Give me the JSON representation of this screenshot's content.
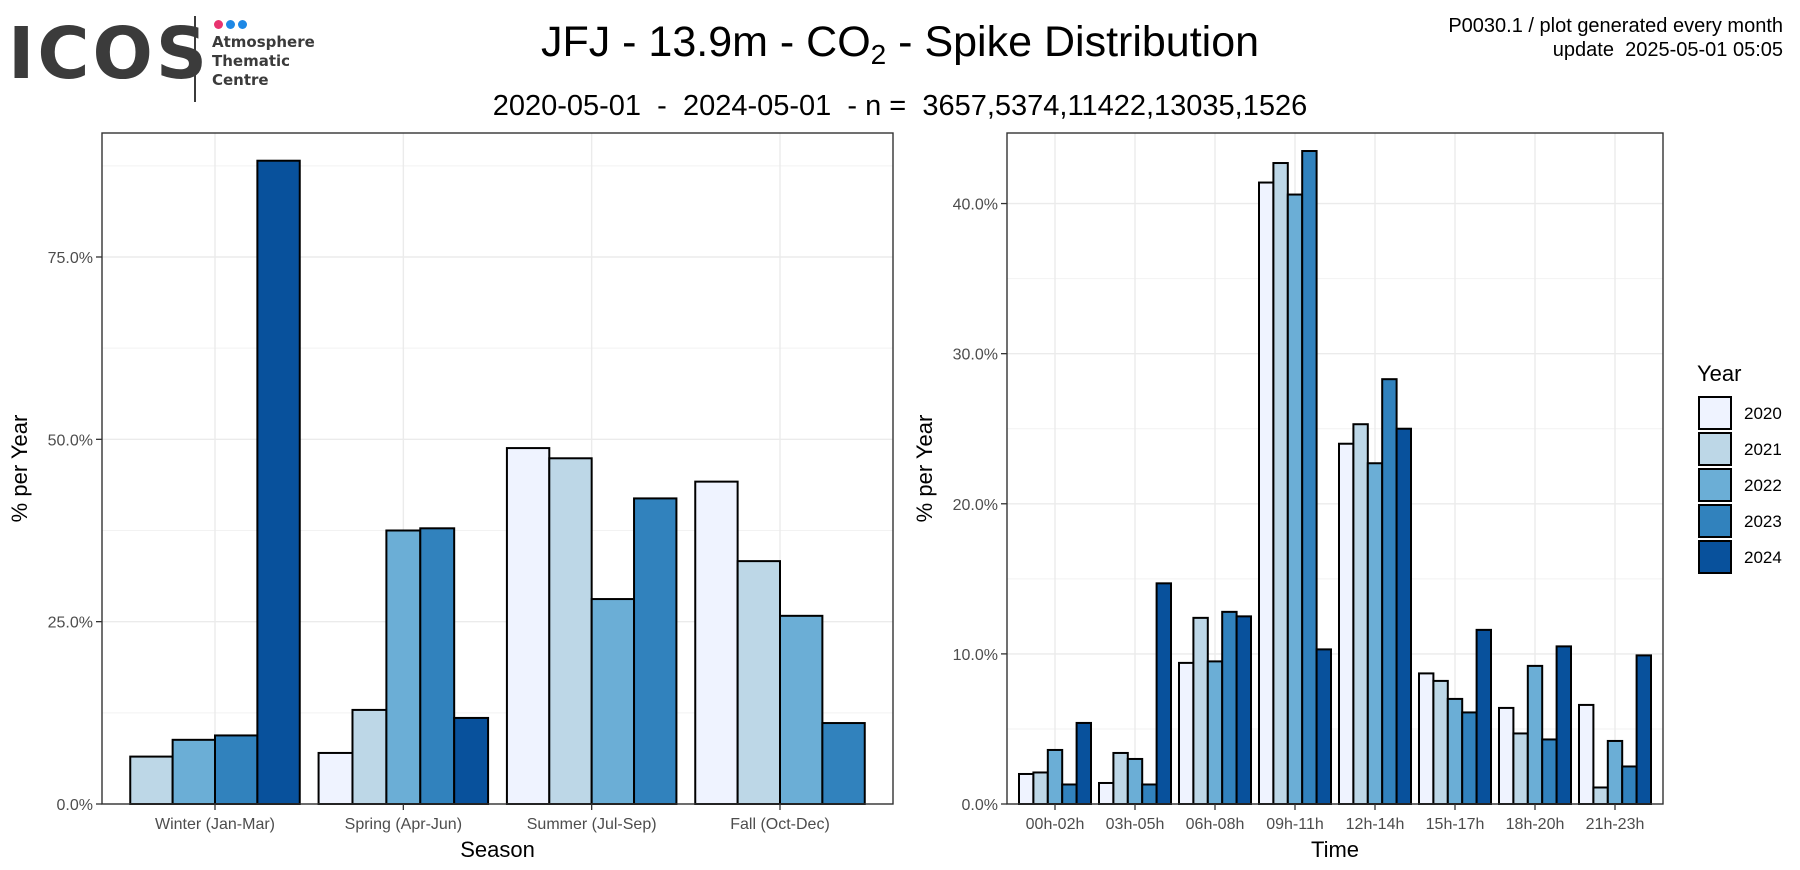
{
  "header": {
    "title_main": "JFJ - 13.9m - CO",
    "title_sub": "2",
    "title_end": " - Spike Distribution",
    "subtitle": "2020-05-01  -  2024-05-01  - n =  3657,5374,11422,13035,1526",
    "meta_line1": "P0030.1 / plot generated every month",
    "meta_line2": "update  2025-05-01 05:05"
  },
  "logo": {
    "word": "ICOS",
    "lines": [
      "Atmosphere",
      "Thematic",
      "Centre"
    ],
    "dot_colors": [
      "#e8336f",
      "#1e88e5",
      "#1e88e5"
    ]
  },
  "legend": {
    "title": "Year",
    "years": [
      "2020",
      "2021",
      "2022",
      "2023",
      "2024"
    ],
    "colors": [
      "#eff3ff",
      "#bdd7e7",
      "#6baed6",
      "#3182bd",
      "#08519c"
    ]
  },
  "chart_data": [
    {
      "type": "bar",
      "xlabel": "Season",
      "ylabel": "% per Year",
      "ylim": [
        0,
        92
      ],
      "yticks": [
        0,
        25,
        50,
        75
      ],
      "ytick_labels": [
        "0.0%",
        "25.0%",
        "50.0%",
        "75.0%"
      ],
      "categories": [
        "Winter (Jan-Mar)",
        "Spring (Apr-Jun)",
        "Summer (Jul-Sep)",
        "Fall (Oct-Dec)"
      ],
      "series": [
        {
          "name": "2020",
          "values": [
            null,
            7.0,
            48.8,
            44.2
          ]
        },
        {
          "name": "2021",
          "values": [
            6.5,
            12.9,
            47.4,
            33.3
          ]
        },
        {
          "name": "2022",
          "values": [
            8.8,
            37.5,
            28.1,
            25.8
          ]
        },
        {
          "name": "2023",
          "values": [
            9.4,
            37.8,
            41.9,
            11.1
          ]
        },
        {
          "name": "2024",
          "values": [
            88.2,
            11.8,
            null,
            null
          ]
        }
      ],
      "grid": true
    },
    {
      "type": "bar",
      "xlabel": "Time",
      "ylabel": "% per Year",
      "ylim": [
        0,
        44.7
      ],
      "yticks": [
        0,
        10,
        20,
        30,
        40
      ],
      "ytick_labels": [
        "0.0%",
        "10.0%",
        "20.0%",
        "30.0%",
        "40.0%"
      ],
      "categories": [
        "00h-02h",
        "03h-05h",
        "06h-08h",
        "09h-11h",
        "12h-14h",
        "15h-17h",
        "18h-20h",
        "21h-23h"
      ],
      "series": [
        {
          "name": "2020",
          "values": [
            2.0,
            1.4,
            9.4,
            41.4,
            24.0,
            8.7,
            6.4,
            6.6
          ]
        },
        {
          "name": "2021",
          "values": [
            2.1,
            3.4,
            12.4,
            42.7,
            25.3,
            8.2,
            4.7,
            1.1
          ]
        },
        {
          "name": "2022",
          "values": [
            3.6,
            3.0,
            9.5,
            40.6,
            22.7,
            7.0,
            9.2,
            4.2
          ]
        },
        {
          "name": "2023",
          "values": [
            1.3,
            1.3,
            12.8,
            43.5,
            28.3,
            6.1,
            4.3,
            2.5
          ]
        },
        {
          "name": "2024",
          "values": [
            5.4,
            14.7,
            12.5,
            10.3,
            25.0,
            11.6,
            10.5,
            9.9
          ]
        }
      ],
      "grid": true
    }
  ]
}
